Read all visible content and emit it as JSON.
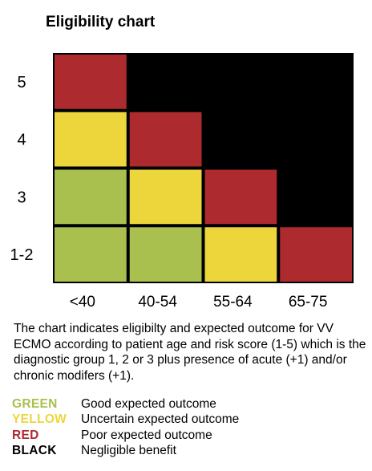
{
  "title": "Eligibility chart",
  "chart_data": {
    "type": "heatmap",
    "columns": [
      "<40",
      "40-54",
      "55-64",
      "65-75"
    ],
    "rows": [
      "5",
      "4",
      "3",
      "1-2"
    ],
    "cells": [
      [
        "red",
        "black",
        "black",
        "black"
      ],
      [
        "yellow",
        "red",
        "black",
        "black"
      ],
      [
        "green",
        "yellow",
        "red",
        "black"
      ],
      [
        "green",
        "green",
        "yellow",
        "red"
      ]
    ],
    "colors": {
      "green": "#a9c04e",
      "yellow": "#ecd63c",
      "red": "#ad2a2f",
      "black": "#000000"
    }
  },
  "caption": "The chart indicates eligibilty and expected outcome for VV ECMO according to patient age and risk score (1-5) which is the diagnostic group 1, 2 or 3 plus presence of acute (+1) and/or chronic modifers (+1).",
  "legend": [
    {
      "key": "GREEN",
      "desc": "Good expected outcome",
      "color": "#a9c04e"
    },
    {
      "key": "YELLOW",
      "desc": "Uncertain expected outcome",
      "color": "#ecd63c"
    },
    {
      "key": "RED",
      "desc": "Poor expected outcome",
      "color": "#ad2a2f"
    },
    {
      "key": "BLACK",
      "desc": "Negligible benefit",
      "color": "#000000"
    }
  ]
}
